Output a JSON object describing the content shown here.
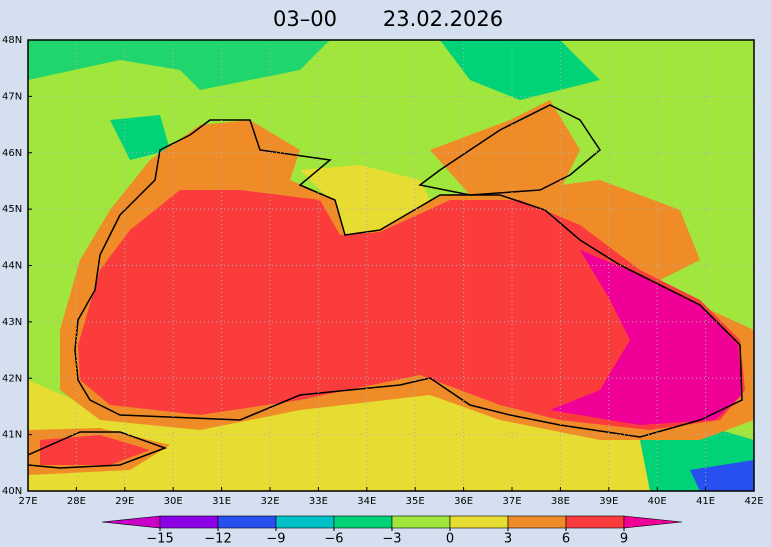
{
  "title": "03–00",
  "date": "23.02.2026",
  "lon_labels": [
    "27E",
    "28E",
    "29E",
    "30E",
    "31E",
    "32E",
    "33E",
    "34E",
    "35E",
    "36E",
    "37E",
    "38E",
    "39E",
    "40E",
    "41E",
    "42E"
  ],
  "lat_labels": [
    "48N",
    "47N",
    "46N",
    "45N",
    "44N",
    "43N",
    "42N",
    "41N",
    "40N"
  ],
  "colorbar": {
    "ticks": [
      {
        "value": -15,
        "label": "−15"
      },
      {
        "value": -12,
        "label": "−12"
      },
      {
        "value": -9,
        "label": "−9"
      },
      {
        "value": -6,
        "label": "−6"
      },
      {
        "value": -3,
        "label": "−3"
      },
      {
        "value": 0,
        "label": "0"
      },
      {
        "value": 3,
        "label": "3"
      },
      {
        "value": 6,
        "label": "6"
      },
      {
        "value": 9,
        "label": "9"
      }
    ],
    "colors": [
      "#c800c8",
      "#8c00e6",
      "#2850f0",
      "#00c0c8",
      "#00d278",
      "#a0e63c",
      "#e6dc32",
      "#f08c28",
      "#fa3c3c",
      "#f00096"
    ]
  }
}
